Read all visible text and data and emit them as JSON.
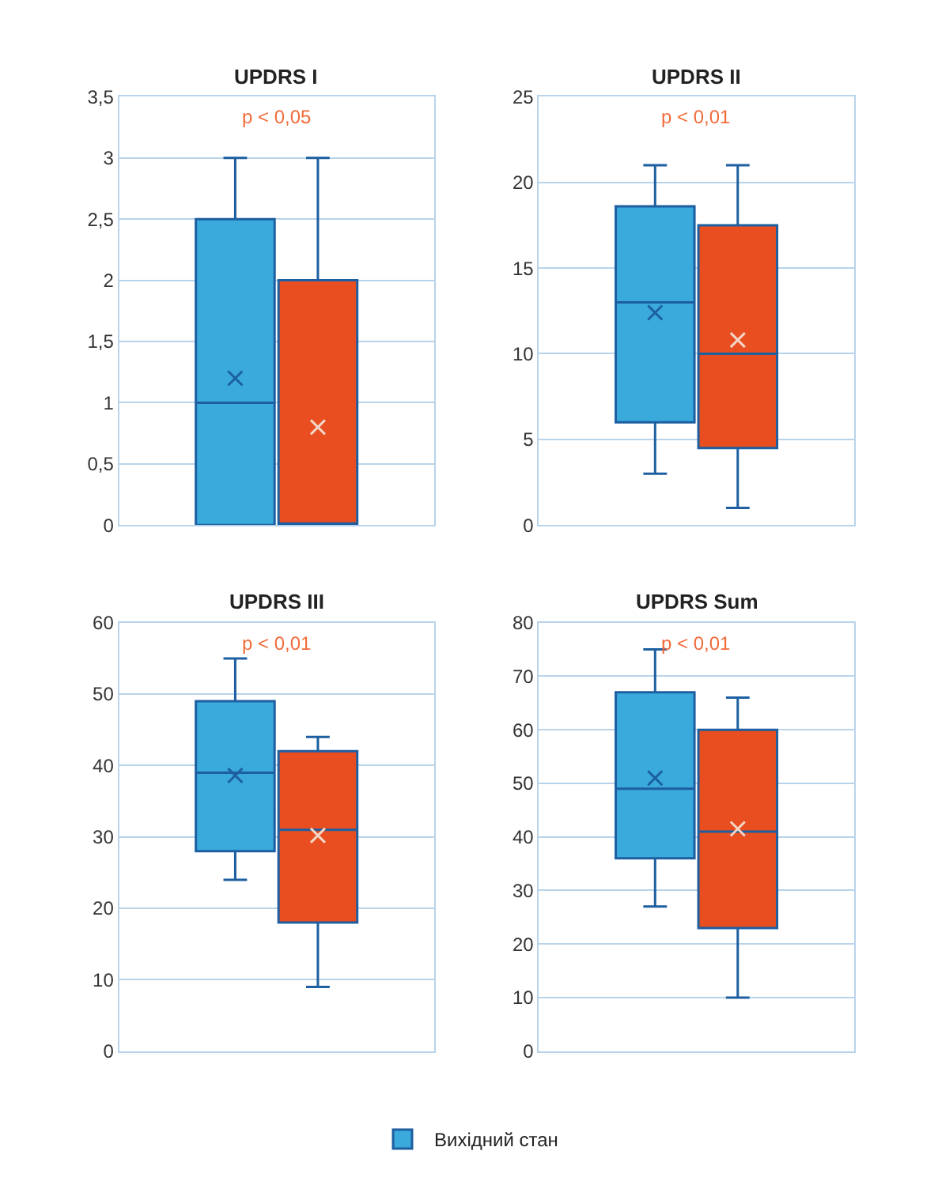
{
  "chart_data": [
    {
      "type": "box",
      "title": "UPDRS I",
      "categories": [
        null
      ],
      "ylim": [
        0,
        3.5
      ],
      "yticks": [
        0,
        {
          "value": 0.5,
          "label": "0,5"
        },
        1,
        {
          "value": 1.5,
          "label": "1,5"
        },
        2,
        {
          "value": 2.5,
          "label": "2,5"
        },
        3,
        {
          "value": 3.5,
          "label": "3,5"
        }
      ],
      "grid": "y",
      "legend": "bottom",
      "marker": "cross",
      "annotations": [
        "p < 0,05"
      ],
      "series": [
        {
          "name": "Вихідний стан",
          "color": "#3aa9dc",
          "boxes": [
            {
              "low": 0,
              "q1": 0,
              "median": 1,
              "q3": 2.5,
              "high": 3,
              "mean": 1.2
            }
          ]
        },
        {
          "color": "#e84e1f",
          "boxes": [
            {
              "low": 0,
              "q1": 0,
              "median": 0,
              "q3": 2,
              "high": 3,
              "mean": 0.8
            }
          ]
        }
      ]
    },
    {
      "type": "box",
      "title": "UPDRS II",
      "categories": [
        null
      ],
      "ylim": [
        0,
        25
      ],
      "yticks": [
        0,
        5,
        10,
        15,
        20,
        25
      ],
      "grid": "y",
      "legend": "bottom",
      "marker": "cross",
      "annotations": [
        "p < 0,01"
      ],
      "series": [
        {
          "name": "Вихідний стан",
          "color": "#3aa9dc",
          "boxes": [
            {
              "low": 3,
              "q1": 6,
              "median": 13,
              "q3": 18.6,
              "high": 21,
              "mean": 12.4
            }
          ]
        },
        {
          "color": "#e84e1f",
          "boxes": [
            {
              "low": 1,
              "q1": 4.5,
              "median": 10,
              "q3": 17.5,
              "high": 21,
              "mean": 10.8
            }
          ]
        }
      ]
    },
    {
      "type": "box",
      "title": "UPDRS III",
      "categories": [
        null
      ],
      "ylim": [
        0,
        60
      ],
      "yticks": [
        0,
        10,
        20,
        30,
        40,
        50,
        60
      ],
      "grid": "y",
      "legend": "bottom",
      "marker": "cross",
      "annotations": [
        "p < 0,01"
      ],
      "series": [
        {
          "name": "Вихідний стан",
          "color": "#3aa9dc",
          "boxes": [
            {
              "low": 24,
              "q1": 28,
              "median": 39,
              "q3": 49,
              "high": 55,
              "mean": 38.6
            }
          ]
        },
        {
          "color": "#e84e1f",
          "boxes": [
            {
              "low": 9,
              "q1": 18,
              "median": 31,
              "q3": 42,
              "high": 44,
              "mean": 30.2
            }
          ]
        }
      ]
    },
    {
      "type": "box",
      "title": "UPDRS Sum",
      "categories": [
        null
      ],
      "ylim": [
        0,
        80
      ],
      "yticks": [
        0,
        10,
        20,
        30,
        40,
        50,
        60,
        70,
        80
      ],
      "grid": "y",
      "legend": "bottom",
      "marker": "cross",
      "annotations": [
        "p < 0,01"
      ],
      "series": [
        {
          "name": "Вихідний стан",
          "color": "#3aa9dc",
          "boxes": [
            {
              "low": 27,
              "q1": 36,
              "median": 49,
              "q3": 67,
              "high": 75,
              "mean": 51
            }
          ]
        },
        {
          "color": "#e84e1f",
          "boxes": [
            {
              "low": 10,
              "q1": 23,
              "median": 41,
              "q3": 60,
              "high": 66,
              "mean": 41.5
            }
          ]
        }
      ]
    }
  ]
}
